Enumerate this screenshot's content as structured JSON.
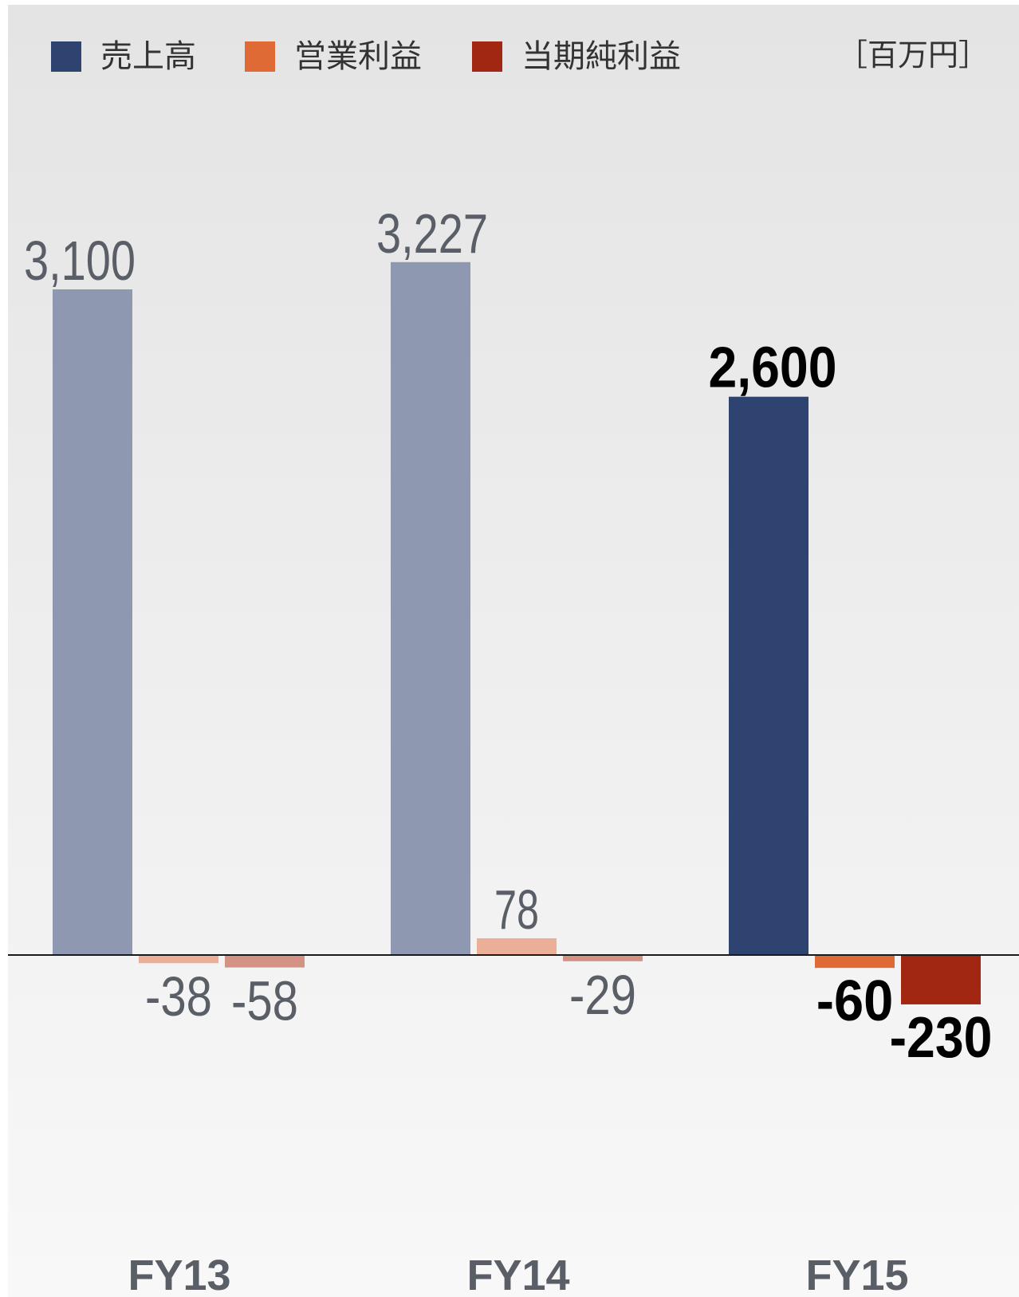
{
  "units_label": "［百万円］",
  "legend": [
    {
      "label": "売上高",
      "color": "#2e4370"
    },
    {
      "label": "営業利益",
      "color": "#e06a35"
    },
    {
      "label": "当期純利益",
      "color": "#a22712"
    }
  ],
  "chart_data": {
    "type": "bar",
    "categories": [
      "FY13",
      "FY14",
      "FY15"
    ],
    "series": [
      {
        "name": "売上高",
        "values": [
          3100,
          3227,
          2600
        ],
        "labels": [
          "3,100",
          "3,227",
          "2,600"
        ]
      },
      {
        "name": "営業利益",
        "values": [
          -38,
          78,
          -60
        ],
        "labels": [
          "-38",
          "78",
          "-60"
        ]
      },
      {
        "name": "当期純利益",
        "values": [
          -58,
          -29,
          -230
        ],
        "labels": [
          "-58",
          "-29",
          "-230"
        ]
      }
    ],
    "highlight_category": "FY15",
    "muted_colors": [
      "#8e99b1",
      "#ebae96",
      "#d49285"
    ],
    "grid": false,
    "legend_position": "top-left"
  }
}
